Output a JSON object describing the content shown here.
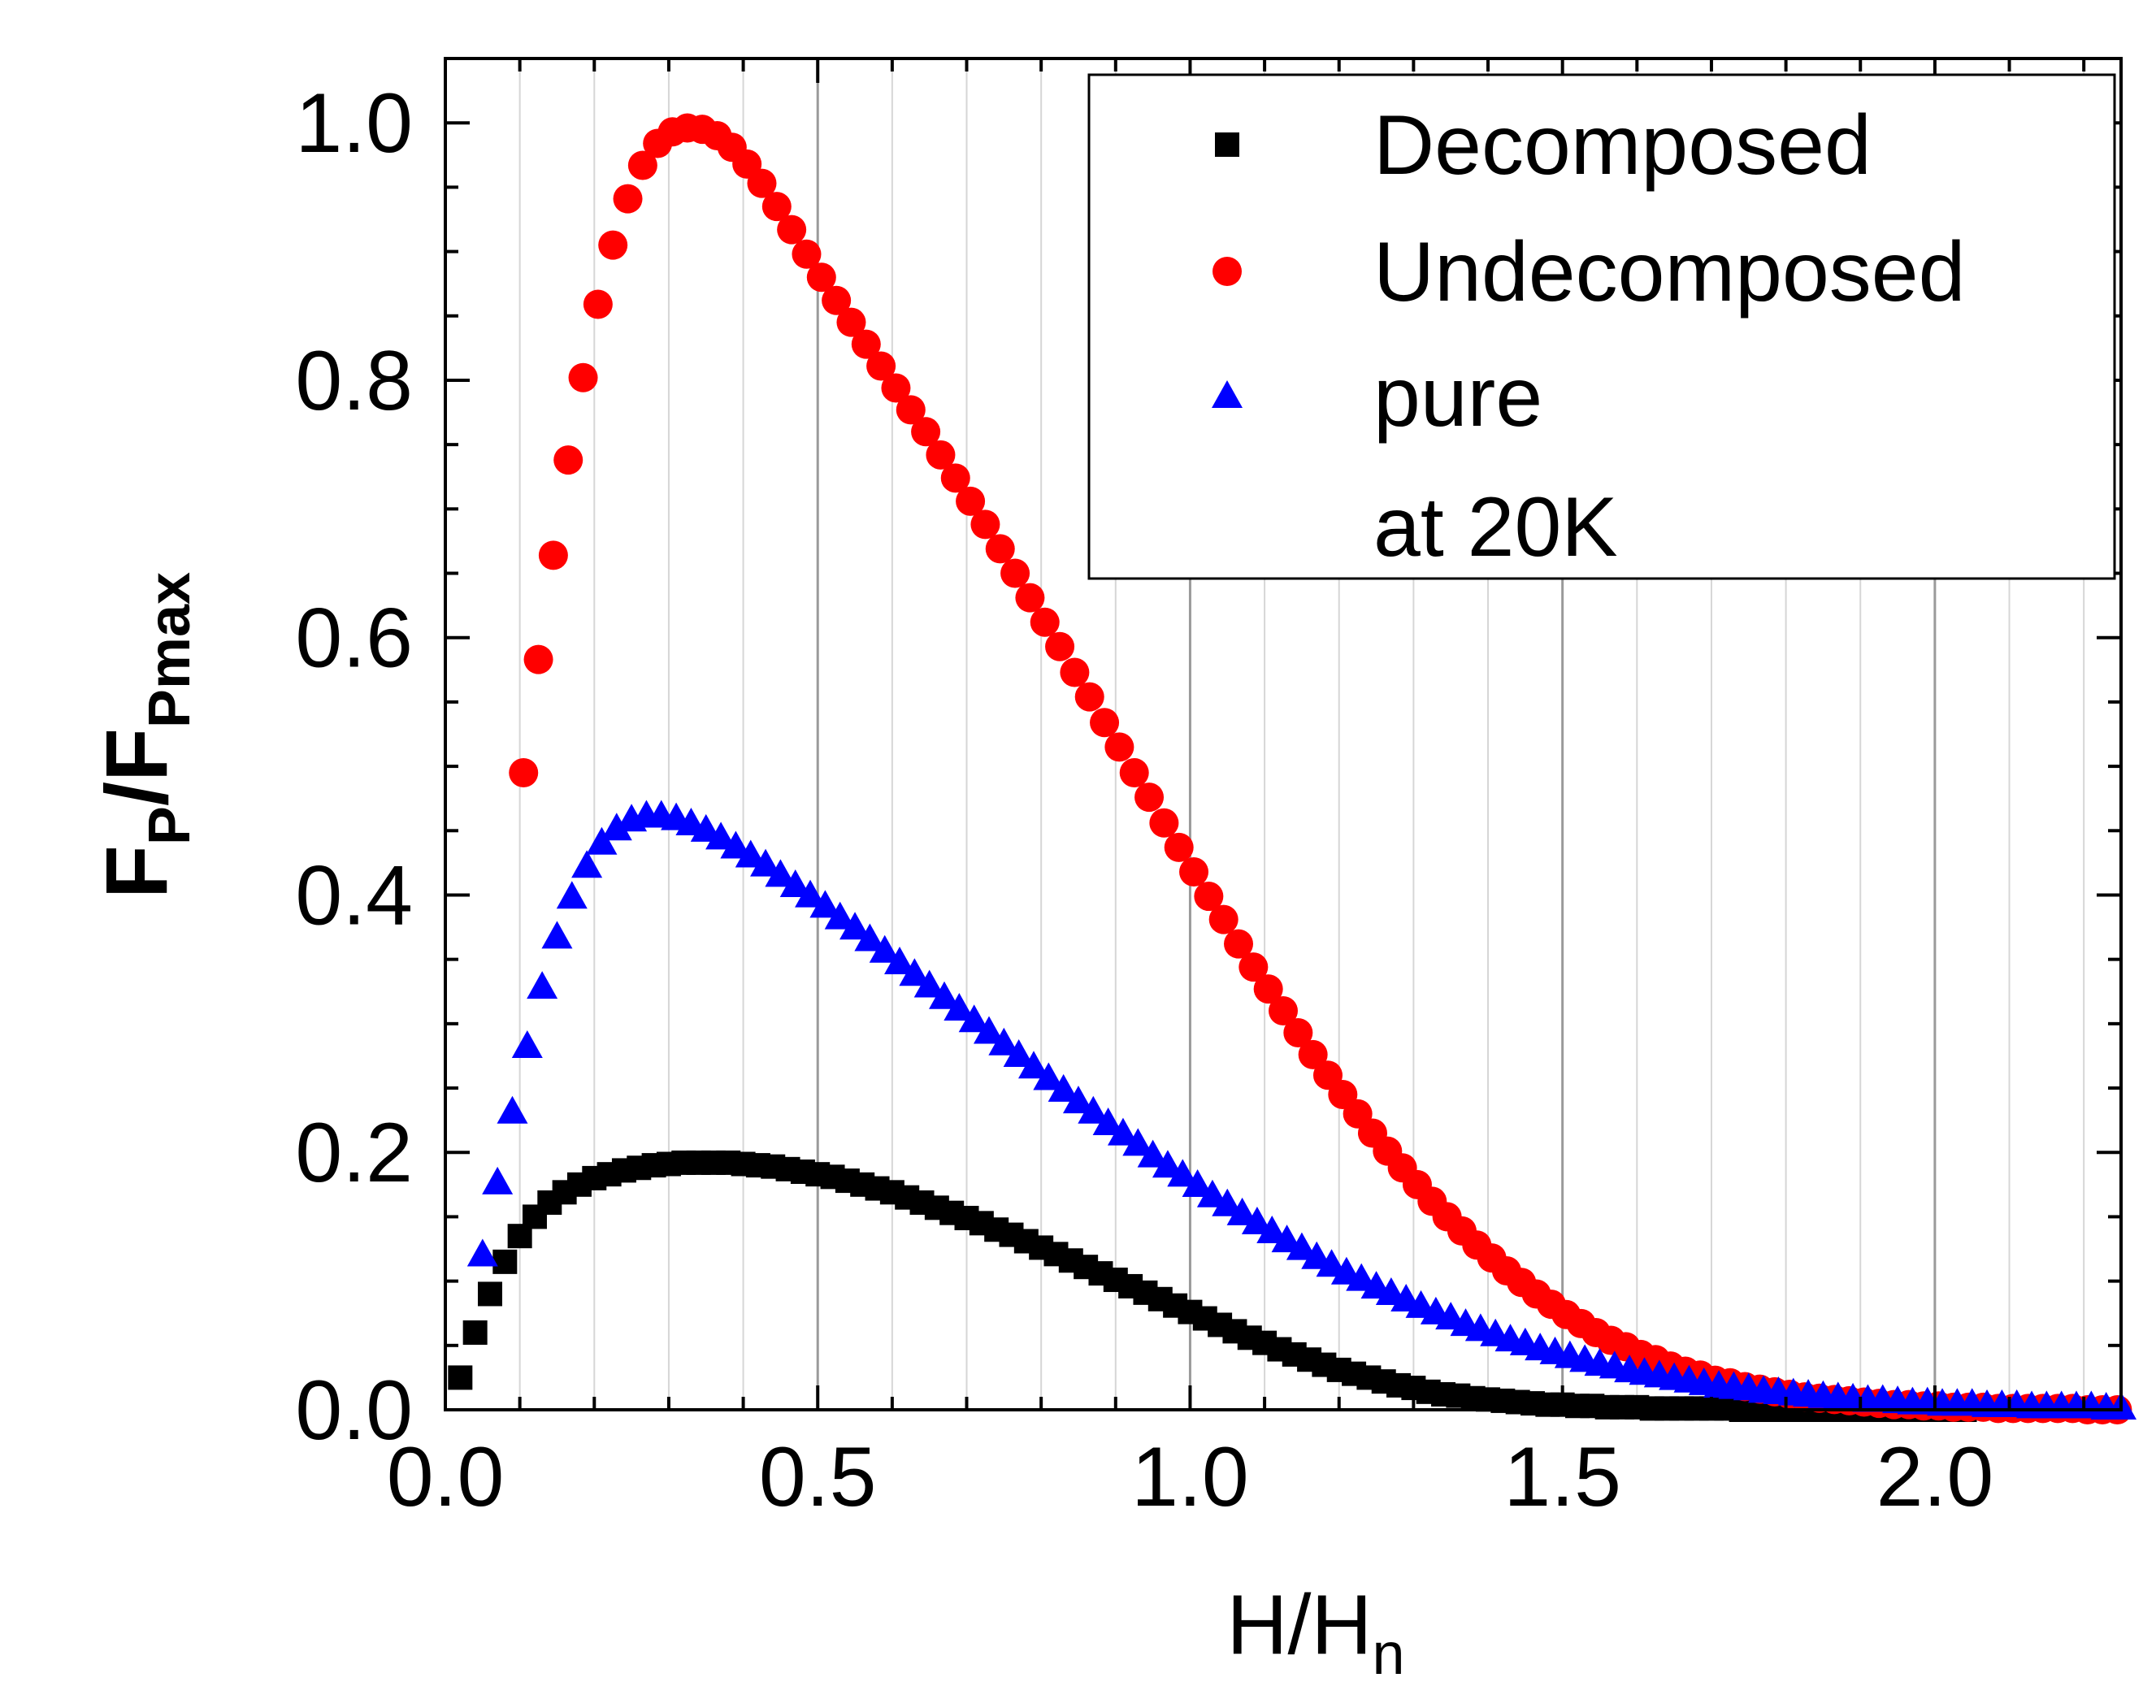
{
  "chart_data": {
    "type": "scatter",
    "xlabel": {
      "main": "H/H",
      "sub": "n"
    },
    "ylabel": {
      "parts": [
        {
          "text": "F",
          "kind": "main"
        },
        {
          "text": "P",
          "kind": "sub"
        },
        {
          "text": "/F",
          "kind": "main"
        },
        {
          "text": "Pmax",
          "kind": "sub"
        }
      ]
    },
    "xlim": [
      0,
      2.25
    ],
    "ylim": [
      0,
      1.05
    ],
    "x_ticks": [
      0.0,
      0.5,
      1.0,
      1.5,
      2.0
    ],
    "x_tick_labels": [
      "0.0",
      "0.5",
      "1.0",
      "1.5",
      "2.0"
    ],
    "y_ticks": [
      0.0,
      0.2,
      0.4,
      0.6,
      0.8,
      1.0
    ],
    "y_tick_labels": [
      "0.0",
      "0.2",
      "0.4",
      "0.6",
      "0.8",
      "1.0"
    ],
    "grid": "vertical",
    "legend": {
      "position": "top-right",
      "entries": [
        "Decomposed",
        "Undecomposed",
        "pure"
      ],
      "note": "at 20K"
    },
    "series": [
      {
        "name": "Decomposed",
        "marker": "square",
        "color": "#000000",
        "x": [
          0.02,
          0.04,
          0.06,
          0.08,
          0.1,
          0.12,
          0.14,
          0.16,
          0.18,
          0.2,
          0.22,
          0.24,
          0.26,
          0.28,
          0.3,
          0.32,
          0.34,
          0.36,
          0.38,
          0.4,
          0.42,
          0.44,
          0.46,
          0.48,
          0.5,
          0.52,
          0.54,
          0.56,
          0.58,
          0.6,
          0.62,
          0.64,
          0.66,
          0.68,
          0.7,
          0.72,
          0.74,
          0.76,
          0.78,
          0.8,
          0.82,
          0.84,
          0.86,
          0.88,
          0.9,
          0.92,
          0.94,
          0.96,
          0.98,
          1.0,
          1.02,
          1.04,
          1.06,
          1.08,
          1.1,
          1.12,
          1.14,
          1.16,
          1.18,
          1.2,
          1.22,
          1.24,
          1.26,
          1.28,
          1.3,
          1.32,
          1.34,
          1.36,
          1.38,
          1.4,
          1.42,
          1.44,
          1.46,
          1.48,
          1.5,
          1.52,
          1.54,
          1.56,
          1.58,
          1.6,
          1.62,
          1.64,
          1.66,
          1.68,
          1.7,
          1.72,
          1.74,
          1.76,
          1.78,
          1.8,
          1.82,
          1.84,
          1.86,
          1.88,
          1.9,
          1.92,
          1.94,
          1.96,
          1.98,
          2.0,
          2.02,
          2.04
        ],
        "y": [
          0.025,
          0.06,
          0.09,
          0.115,
          0.135,
          0.15,
          0.161,
          0.169,
          0.175,
          0.18,
          0.183,
          0.186,
          0.188,
          0.19,
          0.191,
          0.192,
          0.192,
          0.192,
          0.192,
          0.191,
          0.19,
          0.189,
          0.187,
          0.185,
          0.183,
          0.181,
          0.178,
          0.175,
          0.172,
          0.169,
          0.165,
          0.161,
          0.157,
          0.153,
          0.149,
          0.145,
          0.14,
          0.136,
          0.131,
          0.126,
          0.121,
          0.116,
          0.111,
          0.106,
          0.101,
          0.096,
          0.091,
          0.086,
          0.081,
          0.076,
          0.071,
          0.066,
          0.061,
          0.056,
          0.052,
          0.047,
          0.043,
          0.039,
          0.035,
          0.031,
          0.028,
          0.025,
          0.022,
          0.019,
          0.017,
          0.014,
          0.012,
          0.011,
          0.009,
          0.008,
          0.007,
          0.006,
          0.005,
          0.004,
          0.004,
          0.003,
          0.003,
          0.002,
          0.002,
          0.002,
          0.001,
          0.001,
          0.001,
          0.001,
          0.001,
          0.001,
          0.0,
          0.0,
          0.0,
          0.0,
          0.0,
          0.0,
          0.0,
          0.0,
          0.0,
          0.0,
          0.0,
          0.0,
          0.0,
          0.0,
          0.0,
          0.0
        ]
      },
      {
        "name": "Undecomposed",
        "marker": "circle",
        "color": "#ff0000",
        "x": [
          0.105,
          0.125,
          0.145,
          0.165,
          0.185,
          0.205,
          0.225,
          0.245,
          0.265,
          0.285,
          0.305,
          0.325,
          0.345,
          0.365,
          0.385,
          0.405,
          0.425,
          0.445,
          0.465,
          0.485,
          0.505,
          0.525,
          0.545,
          0.565,
          0.585,
          0.605,
          0.625,
          0.645,
          0.665,
          0.685,
          0.705,
          0.725,
          0.745,
          0.765,
          0.785,
          0.805,
          0.825,
          0.845,
          0.865,
          0.885,
          0.905,
          0.925,
          0.945,
          0.965,
          0.985,
          1.005,
          1.025,
          1.045,
          1.065,
          1.085,
          1.105,
          1.125,
          1.145,
          1.165,
          1.185,
          1.205,
          1.225,
          1.245,
          1.265,
          1.285,
          1.305,
          1.325,
          1.345,
          1.365,
          1.385,
          1.405,
          1.425,
          1.445,
          1.465,
          1.485,
          1.505,
          1.525,
          1.545,
          1.565,
          1.585,
          1.605,
          1.625,
          1.645,
          1.665,
          1.685,
          1.705,
          1.725,
          1.745,
          1.765,
          1.785,
          1.805,
          1.825,
          1.845,
          1.865,
          1.885,
          1.905,
          1.925,
          1.945,
          1.965,
          1.985,
          2.005,
          2.025,
          2.045,
          2.065,
          2.085,
          2.105,
          2.125,
          2.145,
          2.165,
          2.185,
          2.205,
          2.225,
          2.245
        ],
        "y": [
          0.495,
          0.583,
          0.664,
          0.738,
          0.802,
          0.859,
          0.905,
          0.941,
          0.967,
          0.984,
          0.993,
          0.996,
          0.995,
          0.99,
          0.981,
          0.968,
          0.953,
          0.935,
          0.917,
          0.898,
          0.88,
          0.862,
          0.845,
          0.828,
          0.811,
          0.794,
          0.777,
          0.76,
          0.742,
          0.724,
          0.706,
          0.688,
          0.669,
          0.65,
          0.631,
          0.612,
          0.593,
          0.573,
          0.554,
          0.534,
          0.515,
          0.495,
          0.476,
          0.456,
          0.437,
          0.418,
          0.399,
          0.381,
          0.362,
          0.344,
          0.327,
          0.31,
          0.293,
          0.276,
          0.26,
          0.245,
          0.23,
          0.215,
          0.201,
          0.188,
          0.175,
          0.162,
          0.15,
          0.139,
          0.128,
          0.118,
          0.108,
          0.099,
          0.09,
          0.082,
          0.074,
          0.067,
          0.06,
          0.054,
          0.049,
          0.043,
          0.039,
          0.034,
          0.03,
          0.027,
          0.023,
          0.021,
          0.018,
          0.016,
          0.014,
          0.012,
          0.01,
          0.009,
          0.008,
          0.007,
          0.006,
          0.005,
          0.004,
          0.004,
          0.003,
          0.003,
          0.002,
          0.002,
          0.002,
          0.001,
          0.001,
          0.001,
          0.001,
          0.001,
          0.001,
          0.0,
          0.0,
          0.0
        ]
      },
      {
        "name": "pure",
        "marker": "triangle",
        "color": "#0000ff",
        "x": [
          0.05,
          0.07,
          0.09,
          0.11,
          0.13,
          0.15,
          0.17,
          0.19,
          0.21,
          0.23,
          0.25,
          0.27,
          0.29,
          0.31,
          0.33,
          0.35,
          0.37,
          0.39,
          0.41,
          0.43,
          0.45,
          0.47,
          0.49,
          0.51,
          0.53,
          0.55,
          0.57,
          0.59,
          0.61,
          0.63,
          0.65,
          0.67,
          0.69,
          0.71,
          0.73,
          0.75,
          0.77,
          0.79,
          0.81,
          0.83,
          0.85,
          0.87,
          0.89,
          0.91,
          0.93,
          0.95,
          0.97,
          0.99,
          1.01,
          1.03,
          1.05,
          1.07,
          1.09,
          1.11,
          1.13,
          1.15,
          1.17,
          1.19,
          1.21,
          1.23,
          1.25,
          1.27,
          1.29,
          1.31,
          1.33,
          1.35,
          1.37,
          1.39,
          1.41,
          1.43,
          1.45,
          1.47,
          1.49,
          1.51,
          1.53,
          1.55,
          1.57,
          1.59,
          1.61,
          1.63,
          1.65,
          1.67,
          1.69,
          1.71,
          1.73,
          1.75,
          1.77,
          1.79,
          1.81,
          1.83,
          1.85,
          1.87,
          1.89,
          1.91,
          1.93,
          1.95,
          1.97,
          1.99,
          2.01,
          2.03,
          2.05,
          2.07,
          2.09,
          2.11,
          2.13,
          2.15,
          2.17,
          2.19,
          2.21,
          2.23,
          2.25
        ],
        "y": [
          0.12,
          0.176,
          0.231,
          0.282,
          0.328,
          0.367,
          0.398,
          0.422,
          0.44,
          0.451,
          0.458,
          0.461,
          0.461,
          0.459,
          0.455,
          0.45,
          0.444,
          0.437,
          0.43,
          0.423,
          0.415,
          0.407,
          0.399,
          0.391,
          0.382,
          0.374,
          0.365,
          0.356,
          0.347,
          0.338,
          0.329,
          0.32,
          0.311,
          0.302,
          0.293,
          0.284,
          0.275,
          0.266,
          0.257,
          0.248,
          0.239,
          0.231,
          0.222,
          0.214,
          0.206,
          0.197,
          0.189,
          0.182,
          0.174,
          0.166,
          0.159,
          0.152,
          0.145,
          0.138,
          0.131,
          0.125,
          0.118,
          0.112,
          0.106,
          0.101,
          0.095,
          0.09,
          0.085,
          0.08,
          0.075,
          0.071,
          0.066,
          0.062,
          0.058,
          0.054,
          0.051,
          0.047,
          0.044,
          0.041,
          0.038,
          0.035,
          0.033,
          0.03,
          0.028,
          0.026,
          0.024,
          0.022,
          0.02,
          0.018,
          0.017,
          0.016,
          0.014,
          0.013,
          0.012,
          0.011,
          0.01,
          0.009,
          0.008,
          0.007,
          0.007,
          0.006,
          0.005,
          0.005,
          0.004,
          0.004,
          0.004,
          0.003,
          0.003,
          0.003,
          0.002,
          0.002,
          0.002,
          0.002,
          0.002,
          0.001,
          0.001
        ]
      }
    ]
  }
}
